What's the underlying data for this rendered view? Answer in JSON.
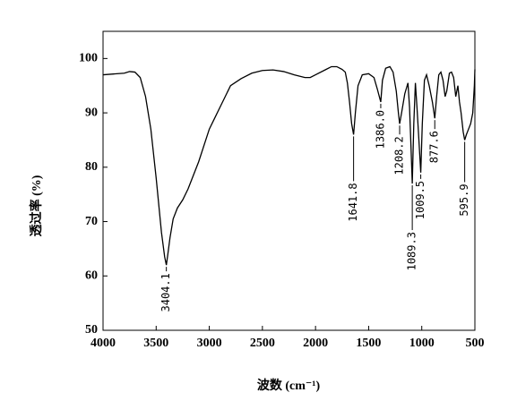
{
  "chart_data": {
    "type": "line",
    "xlabel": "波数 (cm⁻¹)",
    "ylabel": "透过率 (%)",
    "x": [
      4000,
      3800,
      3750,
      3700,
      3650,
      3600,
      3550,
      3500,
      3450,
      3420,
      3404.1,
      3390,
      3370,
      3340,
      3300,
      3250,
      3200,
      3100,
      3000,
      2950,
      2900,
      2850,
      2800,
      2700,
      2600,
      2500,
      2400,
      2300,
      2200,
      2100,
      2050,
      2000,
      1900,
      1850,
      1800,
      1750,
      1720,
      1700,
      1680,
      1660,
      1641.8,
      1625,
      1600,
      1560,
      1500,
      1450,
      1420,
      1386,
      1370,
      1340,
      1300,
      1270,
      1240,
      1220,
      1208.2,
      1190,
      1160,
      1130,
      1115,
      1100,
      1089.3,
      1075,
      1060,
      1045,
      1030,
      1009.5,
      995,
      975,
      955,
      930,
      900,
      877.6,
      860,
      840,
      820,
      800,
      780,
      765,
      740,
      720,
      700,
      680,
      660,
      645,
      630,
      610,
      595.9,
      580,
      560,
      540,
      520,
      505,
      500
    ],
    "series": [
      {
        "color": "#000000",
        "values": [
          97,
          97.3,
          97.6,
          97.5,
          96.5,
          93,
          87,
          78,
          68,
          63.5,
          62,
          64,
          67,
          70.5,
          72.5,
          74,
          76,
          81,
          87,
          89,
          91,
          93,
          95,
          96.3,
          97.3,
          97.8,
          97.9,
          97.6,
          97,
          96.5,
          96.5,
          97,
          98,
          98.5,
          98.5,
          98,
          97.5,
          95.5,
          92,
          88,
          86,
          90,
          95,
          97,
          97.2,
          96.5,
          94.5,
          92,
          96,
          98.2,
          98.5,
          97.5,
          94,
          90,
          88,
          90,
          93.5,
          95.5,
          91,
          83,
          77,
          88,
          95.5,
          91,
          86,
          79,
          88,
          96,
          97,
          95,
          92,
          89,
          93,
          97,
          97.5,
          96,
          93,
          94,
          97.3,
          97.5,
          96.5,
          93,
          95,
          92,
          90,
          86.5,
          85,
          86,
          87,
          88,
          90,
          95,
          98
        ]
      }
    ],
    "annotations": [
      {
        "text": "3404.1",
        "x": 3404.1,
        "y": 62
      },
      {
        "text": "1641.8",
        "x": 1641.8,
        "y": 86
      },
      {
        "text": "1386.0",
        "x": 1386,
        "y": 92
      },
      {
        "text": "1208.2",
        "x": 1208.2,
        "y": 88
      },
      {
        "text": "1089.3",
        "x": 1089.3,
        "y": 77
      },
      {
        "text": "1009.5",
        "x": 1009.5,
        "y": 79
      },
      {
        "text": "877.6",
        "x": 877.6,
        "y": 89
      },
      {
        "text": "595.9",
        "x": 595.9,
        "y": 85
      }
    ],
    "xlim": [
      4000,
      500
    ],
    "ylim": [
      50,
      105
    ],
    "xticks": [
      4000,
      3500,
      3000,
      2500,
      2000,
      1500,
      1000,
      500
    ],
    "yticks": [
      50,
      60,
      70,
      80,
      90,
      100
    ]
  }
}
